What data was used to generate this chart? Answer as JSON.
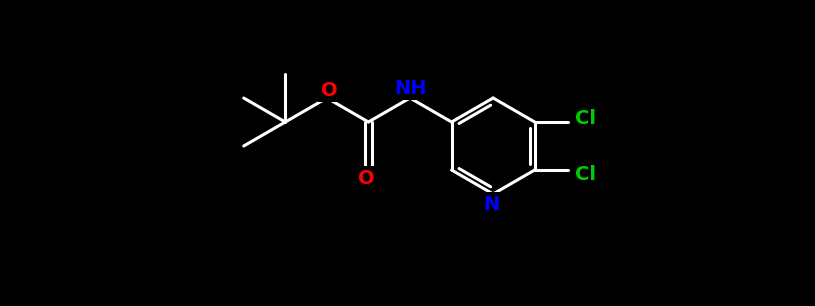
{
  "background_color": "#000000",
  "bond_color": "#ffffff",
  "bond_width": 2.2,
  "atom_colors": {
    "O": "#ff0000",
    "N_NH": "#0000ff",
    "N_ring": "#0000ff",
    "Cl": "#00cc00",
    "C": "#ffffff"
  },
  "font_size": 13,
  "figsize": [
    8.15,
    3.06
  ],
  "dpi": 100,
  "xlim": [
    0,
    815
  ],
  "ylim": [
    0,
    306
  ]
}
